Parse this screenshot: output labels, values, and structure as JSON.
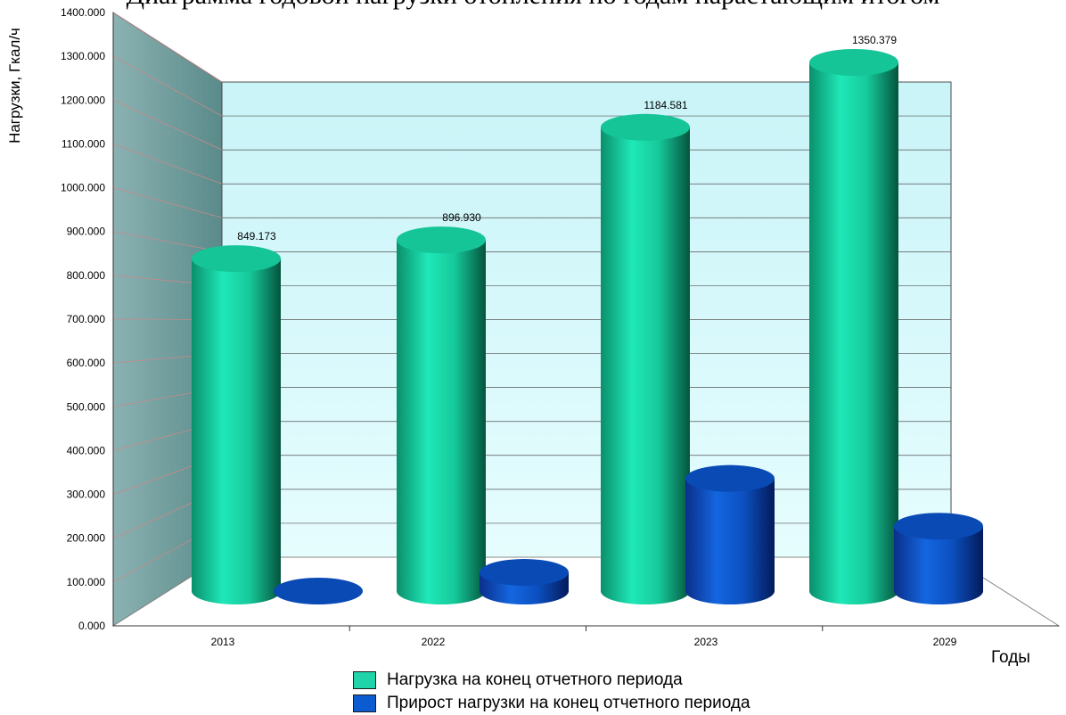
{
  "header_text": "Диаграмма годовой нагрузки отопления по годам нарастающим итогом",
  "colors": {
    "series_1": "#1fd4a8",
    "series_2": "#0d5bd0",
    "wall_side": "#5f9090",
    "wall_back": "#cef7fb"
  },
  "chart_data": {
    "type": "bar",
    "bar_style": "3d-cylinder",
    "categories": [
      "2013",
      "2022",
      "2023",
      "2029"
    ],
    "series": [
      {
        "name": "Нагрузка на конец отчетного периода",
        "values": [
          849.173,
          896.93,
          1184.581,
          1350.379
        ],
        "data_labels": [
          "849.173",
          "896.930",
          "1184.581",
          "1350.379"
        ]
      },
      {
        "name": "Прирост нагрузки на конец отчетного периода",
        "values": [
          0,
          47.757,
          287.651,
          165.798
        ]
      }
    ],
    "ylabel": "Нагрузки, Гкал/ч",
    "xlabel": "Годы",
    "ylim": [
      0,
      1400
    ],
    "yticks": [
      "0.000",
      "100.000",
      "200.000",
      "300.000",
      "400.000",
      "500.000",
      "600.000",
      "700.000",
      "800.000",
      "900.000",
      "1000.000",
      "1100.000",
      "1200.000",
      "1300.000",
      "1400.000"
    ],
    "grid": true,
    "legend_position": "bottom"
  }
}
